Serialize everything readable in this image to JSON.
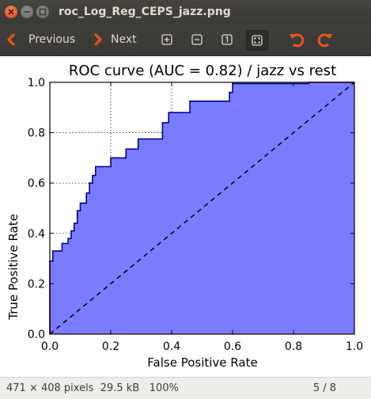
{
  "window": {
    "title": "roc_Log_Reg_CEPS_jazz.png"
  },
  "toolbar": {
    "previous_label": "Previous",
    "next_label": "Next"
  },
  "status": {
    "dimensions": "471 × 408 pixels",
    "size": "29.5 kB",
    "zoom": "100%",
    "page": "5 / 8"
  },
  "colors": {
    "fill": "#7b7bff",
    "line": "#00008b",
    "accent": "#e95420"
  },
  "chart_data": {
    "type": "area",
    "title": "ROC curve (AUC = 0.82) / jazz vs rest",
    "xlabel": "False Positive Rate",
    "ylabel": "True Positive Rate",
    "xlim": [
      0,
      1
    ],
    "ylim": [
      0,
      1
    ],
    "grid": true,
    "xticks": [
      "0.0",
      "0.2",
      "0.4",
      "0.6",
      "0.8",
      "1.0"
    ],
    "yticks": [
      "0.0",
      "0.2",
      "0.4",
      "0.6",
      "0.8",
      "1.0"
    ],
    "series": [
      {
        "x": [
          0,
          0,
          0.01,
          0.01,
          0.04,
          0.04,
          0.06,
          0.06,
          0.07,
          0.07,
          0.08,
          0.08,
          0.09,
          0.09,
          0.1,
          0.1,
          0.12,
          0.12,
          0.13,
          0.13,
          0.14,
          0.14,
          0.15,
          0.15,
          0.2,
          0.2,
          0.25,
          0.25,
          0.29,
          0.29,
          0.37,
          0.37,
          0.39,
          0.39,
          0.46,
          0.46,
          0.59,
          0.59,
          0.6,
          0.6,
          0.85,
          0.85,
          1.0
        ],
        "y": [
          0,
          0.29,
          0.29,
          0.33,
          0.33,
          0.36,
          0.36,
          0.38,
          0.38,
          0.41,
          0.41,
          0.44,
          0.44,
          0.49,
          0.49,
          0.52,
          0.52,
          0.56,
          0.56,
          0.6,
          0.6,
          0.63,
          0.63,
          0.665,
          0.665,
          0.7,
          0.7,
          0.735,
          0.735,
          0.775,
          0.775,
          0.84,
          0.84,
          0.88,
          0.88,
          0.925,
          0.925,
          0.96,
          0.96,
          0.995,
          0.995,
          1.0,
          1.0
        ]
      }
    ],
    "diagonal": {
      "x": [
        0,
        1
      ],
      "y": [
        0,
        1
      ]
    }
  }
}
